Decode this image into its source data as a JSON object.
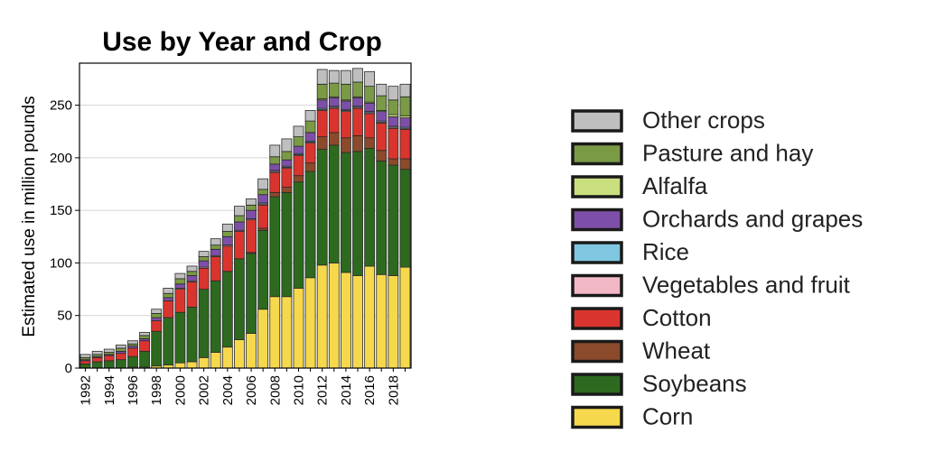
{
  "chart_data": {
    "type": "bar",
    "stacked": true,
    "title": "Use by Year and Crop",
    "xlabel": "",
    "ylabel": "Estimated use in million pounds",
    "ylim": [
      0,
      290
    ],
    "yticks": [
      0,
      50,
      100,
      150,
      200,
      250
    ],
    "grid": true,
    "legend_position": "right",
    "categories": [
      "1992",
      "1993",
      "1994",
      "1995",
      "1996",
      "1997",
      "1998",
      "1999",
      "2000",
      "2001",
      "2002",
      "2003",
      "2004",
      "2005",
      "2006",
      "2007",
      "2008",
      "2009",
      "2010",
      "2011",
      "2012",
      "2013",
      "2014",
      "2015",
      "2016",
      "2017",
      "2018",
      "2019"
    ],
    "xtick_labels": [
      "1992",
      "1994",
      "1996",
      "1998",
      "2000",
      "2002",
      "2004",
      "2006",
      "2008",
      "2010",
      "2012",
      "2014",
      "2016",
      "2018"
    ],
    "series": [
      {
        "name": "Corn",
        "color": "#F6D84C",
        "values": [
          0,
          0,
          0,
          0,
          1,
          1,
          2,
          3,
          5,
          6,
          10,
          15,
          20,
          27,
          33,
          56,
          68,
          68,
          76,
          86,
          98,
          100,
          91,
          88,
          97,
          89,
          88,
          96
        ]
      },
      {
        "name": "Soybeans",
        "color": "#2D6A1F",
        "values": [
          4,
          6,
          7,
          8,
          10,
          15,
          33,
          45,
          48,
          52,
          65,
          68,
          72,
          77,
          76,
          75,
          95,
          99,
          101,
          101,
          110,
          112,
          114,
          118,
          112,
          108,
          105,
          93
        ]
      },
      {
        "name": "Wheat",
        "color": "#8B4A2B",
        "values": [
          0,
          0,
          0,
          0,
          0,
          0,
          0,
          0,
          0,
          0,
          0,
          0,
          0,
          0,
          1,
          2,
          4,
          5,
          6,
          8,
          12,
          12,
          14,
          15,
          10,
          10,
          6,
          10
        ]
      },
      {
        "name": "Cotton",
        "color": "#D9352E",
        "values": [
          3,
          4,
          5,
          6,
          8,
          10,
          10,
          16,
          22,
          24,
          20,
          23,
          24,
          26,
          31,
          22,
          19,
          18,
          19,
          19,
          25,
          23,
          25,
          26,
          23,
          26,
          29,
          28
        ]
      },
      {
        "name": "Vegetables and fruit",
        "color": "#F2B8C6",
        "values": [
          0,
          0,
          0,
          0,
          0,
          0,
          0,
          0,
          1,
          1,
          1,
          1,
          1,
          1,
          1,
          1,
          1,
          1,
          1,
          1,
          1,
          1,
          1,
          1,
          1,
          1,
          1,
          1
        ]
      },
      {
        "name": "Rice",
        "color": "#7FC7E0",
        "values": [
          0,
          0,
          0,
          0,
          0,
          0,
          0,
          0,
          0,
          0,
          0,
          0,
          0,
          0,
          0,
          1,
          1,
          1,
          1,
          1,
          1,
          1,
          1,
          1,
          1,
          1,
          1,
          1
        ]
      },
      {
        "name": "Orchards and grapes",
        "color": "#7E4FA8",
        "values": [
          1,
          1,
          1,
          2,
          2,
          2,
          3,
          3,
          4,
          5,
          6,
          6,
          8,
          8,
          8,
          8,
          6,
          6,
          7,
          8,
          8,
          8,
          8,
          8,
          8,
          9,
          9,
          9
        ]
      },
      {
        "name": "Alfalfa",
        "color": "#C9DE7E",
        "values": [
          0,
          0,
          0,
          0,
          0,
          0,
          0,
          0,
          0,
          0,
          0,
          0,
          0,
          0,
          0,
          0,
          0,
          0,
          0,
          0,
          1,
          1,
          1,
          1,
          1,
          1,
          2,
          2
        ]
      },
      {
        "name": "Pasture and hay",
        "color": "#7A9A45",
        "values": [
          2,
          2,
          2,
          3,
          2,
          3,
          4,
          4,
          5,
          4,
          4,
          4,
          5,
          6,
          5,
          5,
          7,
          8,
          9,
          11,
          14,
          13,
          15,
          14,
          15,
          14,
          14,
          18
        ]
      },
      {
        "name": "Other crops",
        "color": "#BFBFBF",
        "values": [
          3,
          3,
          3,
          3,
          3,
          3,
          4,
          5,
          5,
          5,
          5,
          6,
          7,
          9,
          6,
          10,
          11,
          12,
          10,
          10,
          14,
          12,
          13,
          13,
          14,
          11,
          13,
          12
        ]
      }
    ]
  }
}
